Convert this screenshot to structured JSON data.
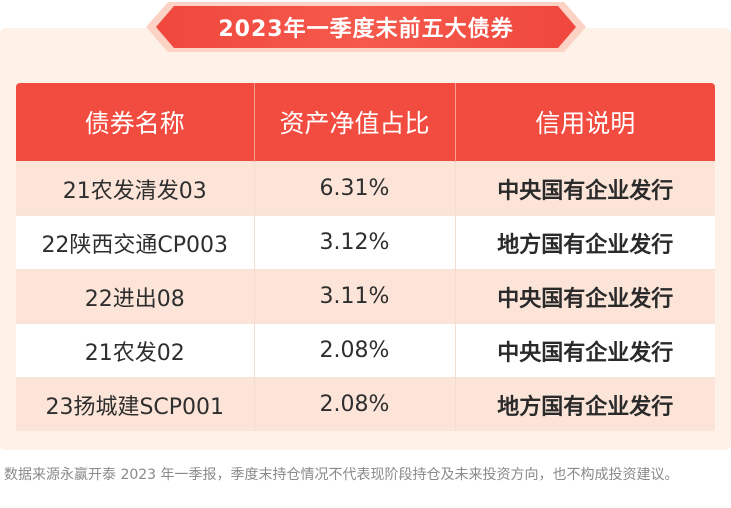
{
  "title": "2023年一季度末前五大债券",
  "table": {
    "headers": [
      "债券名称",
      "资产净值占比",
      "信用说明"
    ],
    "rows": [
      {
        "name": "21农发清发03",
        "ratio": "6.31%",
        "credit": "中央国有企业发行"
      },
      {
        "name": "22陕西交通CP003",
        "ratio": "3.12%",
        "credit": "地方国有企业发行"
      },
      {
        "name": "22进出08",
        "ratio": "3.11%",
        "credit": "中央国有企业发行"
      },
      {
        "name": "21农发02",
        "ratio": "2.08%",
        "credit": "中央国有企业发行"
      },
      {
        "name": "23扬城建SCP001",
        "ratio": "2.08%",
        "credit": "地方国有企业发行"
      }
    ]
  },
  "footnote": "数据来源永赢开泰 2023 年一季报，季度末持仓情况不代表现阶段持仓及未来投资方向，也不构成投资建议。",
  "colors": {
    "accent": "#f24b3f",
    "banner_light": "#fbd2c4",
    "row_alt": "#fce5d8",
    "card_bg": "#fdf1e8"
  }
}
